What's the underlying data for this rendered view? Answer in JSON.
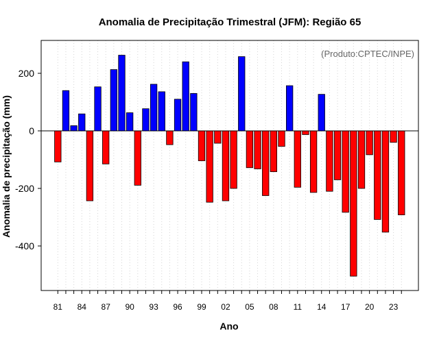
{
  "chart_data": {
    "type": "bar",
    "title": "Anomalia de Precipitação Trimestral (JFM): Região 65",
    "xlabel": "Ano",
    "ylabel": "Anomalia de precipitação (mm)",
    "credit": "(Produto:CPTEC/INPE)",
    "ylim": [
      -550,
      310
    ],
    "yticks": [
      200,
      0,
      -200,
      -400
    ],
    "ytick_labels": [
      "200",
      "0",
      "-200",
      "-400"
    ],
    "xtick_years": [
      1981,
      1984,
      1987,
      1990,
      1993,
      1996,
      1999,
      2002,
      2005,
      2008,
      2011,
      2014,
      2017,
      2020,
      2023
    ],
    "xtick_labels": [
      "81",
      "84",
      "87",
      "90",
      "93",
      "96",
      "99",
      "02",
      "05",
      "08",
      "11",
      "14",
      "17",
      "20",
      "23"
    ],
    "positive_color": "#0000ff",
    "negative_color": "#ff0000",
    "years": [
      1981,
      1982,
      1983,
      1984,
      1985,
      1986,
      1987,
      1988,
      1989,
      1990,
      1991,
      1992,
      1993,
      1994,
      1995,
      1996,
      1997,
      1998,
      1999,
      2000,
      2001,
      2002,
      2003,
      2004,
      2005,
      2006,
      2007,
      2008,
      2009,
      2010,
      2011,
      2012,
      2013,
      2014,
      2015,
      2016,
      2017,
      2018,
      2019,
      2020,
      2021,
      2022,
      2023,
      2024
    ],
    "values": [
      -108,
      140,
      18,
      59,
      -243,
      153,
      -115,
      213,
      263,
      63,
      -189,
      77,
      162,
      136,
      -48,
      110,
      240,
      130,
      -104,
      -248,
      -43,
      -243,
      -200,
      258,
      -128,
      -132,
      -225,
      -142,
      -54,
      157,
      -196,
      -13,
      -214,
      127,
      -210,
      -170,
      -283,
      -505,
      -200,
      -83,
      -308,
      -352,
      -40,
      -292
    ]
  }
}
